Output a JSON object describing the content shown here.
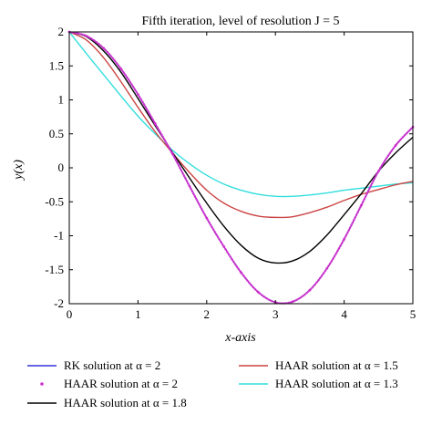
{
  "chart_data": {
    "type": "line",
    "title": "Fifth iteration, level of resolution J = 5",
    "xlabel": "x-axis",
    "ylabel": "y(x)",
    "xlim": [
      0,
      5
    ],
    "ylim": [
      -2,
      2
    ],
    "xticks": [
      "0",
      "1",
      "2",
      "3",
      "4",
      "5"
    ],
    "yticks": [
      "2",
      "1.5",
      "1",
      "0.5",
      "0",
      "-0.5",
      "-1",
      "-1.5",
      "-2"
    ],
    "x": [
      0,
      0.25,
      0.5,
      0.75,
      1,
      1.25,
      1.5,
      1.75,
      2,
      2.25,
      2.5,
      2.75,
      3,
      3.25,
      3.5,
      3.75,
      4,
      4.25,
      4.5,
      4.75,
      5
    ],
    "series": [
      {
        "name": "RK solution at α = 2",
        "color": "#3333dd",
        "style": "line",
        "values": [
          2,
          1.94,
          1.76,
          1.46,
          1.08,
          0.65,
          0.21,
          -0.27,
          -0.74,
          -1.16,
          -1.54,
          -1.83,
          -1.98,
          -1.97,
          -1.8,
          -1.48,
          -1.05,
          -0.55,
          -0.05,
          0.33,
          0.6
        ]
      },
      {
        "name": "HAAR solution at α = 2",
        "color": "#cc33cc",
        "style": "dots",
        "values": [
          2,
          1.94,
          1.76,
          1.46,
          1.08,
          0.65,
          0.21,
          -0.27,
          -0.74,
          -1.16,
          -1.54,
          -1.83,
          -1.98,
          -1.97,
          -1.8,
          -1.48,
          -1.05,
          -0.55,
          -0.05,
          0.33,
          0.6
        ]
      },
      {
        "name": "HAAR solution at α = 1.8",
        "color": "#000000",
        "style": "line",
        "values": [
          2,
          1.93,
          1.72,
          1.41,
          1.02,
          0.62,
          0.23,
          -0.15,
          -0.52,
          -0.86,
          -1.14,
          -1.33,
          -1.4,
          -1.37,
          -1.23,
          -0.99,
          -0.69,
          -0.38,
          -0.05,
          0.22,
          0.45
        ]
      },
      {
        "name": "HAAR solution at α = 1.5",
        "color": "#cc4444",
        "style": "line",
        "values": [
          2,
          1.88,
          1.62,
          1.27,
          0.89,
          0.53,
          0.22,
          -0.07,
          -0.33,
          -0.52,
          -0.64,
          -0.71,
          -0.73,
          -0.72,
          -0.66,
          -0.58,
          -0.48,
          -0.39,
          -0.32,
          -0.25,
          -0.2
        ]
      },
      {
        "name": "HAAR solution at α = 1.3",
        "color": "#33dddd",
        "style": "line",
        "values": [
          2,
          1.68,
          1.37,
          1.06,
          0.76,
          0.5,
          0.26,
          0.06,
          -0.11,
          -0.24,
          -0.33,
          -0.39,
          -0.42,
          -0.42,
          -0.4,
          -0.37,
          -0.33,
          -0.3,
          -0.27,
          -0.24,
          -0.22
        ]
      }
    ],
    "legend_placement": "bottom",
    "grid": false
  }
}
